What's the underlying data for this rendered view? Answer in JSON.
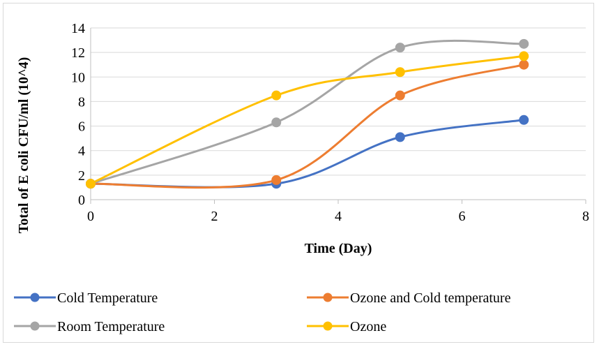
{
  "chart_data": {
    "type": "line",
    "title": "",
    "xlabel": "Time (Day)",
    "ylabel": "Total of E coli CFU/ml (10^4)",
    "xlim": [
      0,
      8
    ],
    "ylim": [
      0,
      14
    ],
    "xticks": [
      0,
      2,
      4,
      6,
      8
    ],
    "yticks": [
      0,
      2,
      4,
      6,
      8,
      10,
      12,
      14
    ],
    "grid": "horizontal",
    "smooth": true,
    "legend": "bottom",
    "series": [
      {
        "name": "Cold Temperature",
        "color": "#4472C4",
        "points": [
          [
            0,
            1.3
          ],
          [
            3,
            1.3
          ],
          [
            5,
            5.1
          ],
          [
            7,
            6.5
          ]
        ]
      },
      {
        "name": "Ozone and Cold temperature",
        "color": "#ED7D31",
        "points": [
          [
            0,
            1.3
          ],
          [
            3,
            1.6
          ],
          [
            5,
            8.5
          ],
          [
            7,
            11.0
          ]
        ]
      },
      {
        "name": "Room Temperature",
        "color": "#A5A5A5",
        "points": [
          [
            0,
            1.3
          ],
          [
            3,
            6.3
          ],
          [
            5,
            12.4
          ],
          [
            7,
            12.7
          ]
        ]
      },
      {
        "name": "Ozone",
        "color": "#FFC000",
        "points": [
          [
            0,
            1.3
          ],
          [
            3,
            8.5
          ],
          [
            5,
            10.4
          ],
          [
            7,
            11.7
          ]
        ]
      }
    ]
  }
}
